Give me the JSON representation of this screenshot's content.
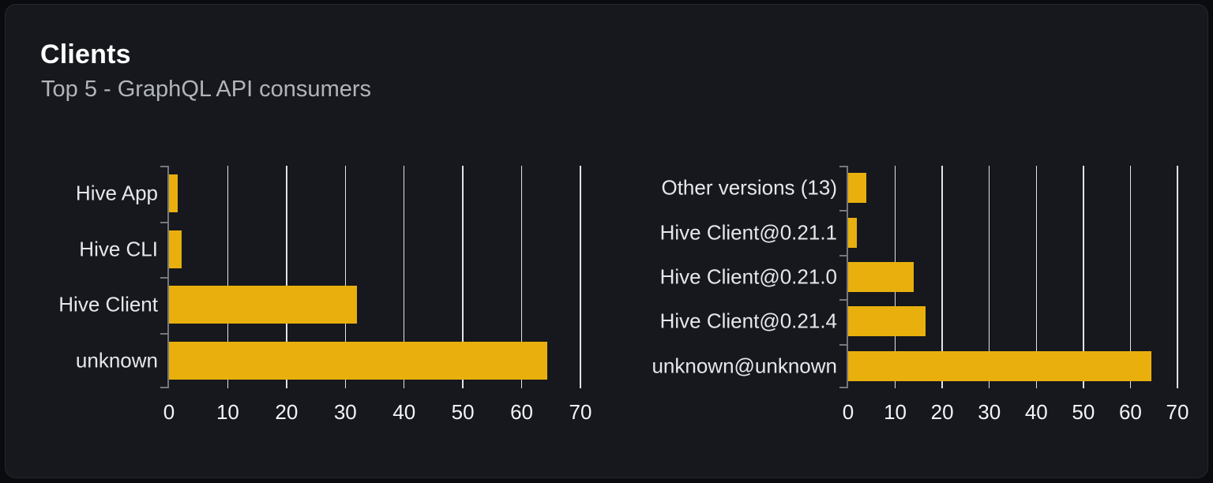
{
  "card": {
    "title": "Clients",
    "subtitle": "Top 5 - GraphQL API consumers"
  },
  "colors": {
    "page_bg": "#0a0b0e",
    "card_bg": "#16181d",
    "card_border": "#25272f",
    "title": "#ffffff",
    "subtitle": "#b1b4ba",
    "bar": "#e9b00d",
    "gridline": "#dfe3ec",
    "axis": "#74777e",
    "category_label": "#e5e7ea",
    "tick_label": "#f3f4f6"
  },
  "chart_data": [
    {
      "type": "bar",
      "orientation": "horizontal",
      "name": "clients-by-name",
      "categories": [
        "Hive App",
        "Hive CLI",
        "Hive Client",
        "unknown"
      ],
      "values": [
        1.5,
        2.2,
        32,
        64.3
      ],
      "xticks": [
        0,
        10,
        20,
        30,
        40,
        50,
        60,
        70
      ],
      "xlim": [
        0,
        70
      ],
      "xlabel": "",
      "ylabel": "",
      "grid": true,
      "legend": false
    },
    {
      "type": "bar",
      "orientation": "horizontal",
      "name": "clients-by-version",
      "categories": [
        "Other versions (13)",
        "Hive Client@0.21.1",
        "Hive Client@0.21.0",
        "Hive Client@0.21.4",
        "unknown@unknown"
      ],
      "values": [
        3.9,
        1.9,
        13.9,
        16.5,
        64.4
      ],
      "xticks": [
        0,
        10,
        20,
        30,
        40,
        50,
        60,
        70
      ],
      "xlim": [
        0,
        70
      ],
      "xlabel": "",
      "ylabel": "",
      "grid": true,
      "legend": false
    }
  ]
}
